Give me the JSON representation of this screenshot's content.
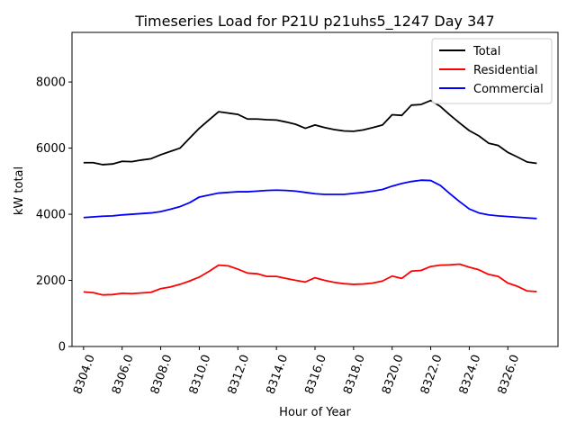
{
  "chart_data": {
    "type": "line",
    "title": "Timeseries Load for P21U p21uhs5_1247  Day 347",
    "xlabel": "Hour of Year",
    "ylabel": "kW total",
    "xlim": [
      8303.4,
      8328.6
    ],
    "ylim": [
      0,
      9500
    ],
    "xticks": [
      8304,
      8306,
      8308,
      8310,
      8312,
      8314,
      8316,
      8318,
      8320,
      8322,
      8324,
      8326
    ],
    "xtick_labels": [
      "8304.0",
      "8306.0",
      "8308.0",
      "8310.0",
      "8312.0",
      "8314.0",
      "8316.0",
      "8318.0",
      "8320.0",
      "8322.0",
      "8324.0",
      "8326.0"
    ],
    "yticks": [
      0,
      2000,
      4000,
      6000,
      8000
    ],
    "ytick_labels": [
      "0",
      "2000",
      "4000",
      "6000",
      "8000"
    ],
    "grid": false,
    "legend_position": "top-right",
    "series": [
      {
        "name": "Total",
        "color": "#000000",
        "points": [
          [
            8304,
            5560
          ],
          [
            8304.5,
            5560
          ],
          [
            8305,
            5500
          ],
          [
            8305.5,
            5520
          ],
          [
            8306,
            5600
          ],
          [
            8306.5,
            5590
          ],
          [
            8307,
            5640
          ],
          [
            8307.5,
            5680
          ],
          [
            8308,
            5800
          ],
          [
            8308.5,
            5900
          ],
          [
            8309,
            6000
          ],
          [
            8309.5,
            6300
          ],
          [
            8310,
            6600
          ],
          [
            8310.5,
            6850
          ],
          [
            8311,
            7100
          ],
          [
            8311.5,
            7060
          ],
          [
            8312,
            7020
          ],
          [
            8312.5,
            6880
          ],
          [
            8313,
            6880
          ],
          [
            8313.5,
            6860
          ],
          [
            8314,
            6850
          ],
          [
            8314.5,
            6790
          ],
          [
            8315,
            6720
          ],
          [
            8315.5,
            6600
          ],
          [
            8316,
            6700
          ],
          [
            8316.5,
            6620
          ],
          [
            8317,
            6560
          ],
          [
            8317.5,
            6520
          ],
          [
            8318,
            6510
          ],
          [
            8318.5,
            6550
          ],
          [
            8319,
            6620
          ],
          [
            8319.5,
            6700
          ],
          [
            8320,
            7010
          ],
          [
            8320.5,
            6990
          ],
          [
            8321,
            7300
          ],
          [
            8321.5,
            7320
          ],
          [
            8322,
            7440
          ],
          [
            8322.5,
            7260
          ],
          [
            8323,
            7000
          ],
          [
            8323.5,
            6760
          ],
          [
            8324,
            6530
          ],
          [
            8324.5,
            6370
          ],
          [
            8325,
            6150
          ],
          [
            8325.5,
            6080
          ],
          [
            8326,
            5870
          ],
          [
            8326.5,
            5730
          ],
          [
            8327,
            5580
          ],
          [
            8327.5,
            5540
          ]
        ]
      },
      {
        "name": "Residential",
        "color": "#ff0000",
        "points": [
          [
            8304,
            1650
          ],
          [
            8304.5,
            1630
          ],
          [
            8305,
            1560
          ],
          [
            8305.5,
            1570
          ],
          [
            8306,
            1610
          ],
          [
            8306.5,
            1600
          ],
          [
            8307,
            1620
          ],
          [
            8307.5,
            1640
          ],
          [
            8308,
            1750
          ],
          [
            8308.5,
            1800
          ],
          [
            8309,
            1880
          ],
          [
            8309.5,
            1980
          ],
          [
            8310,
            2100
          ],
          [
            8310.5,
            2270
          ],
          [
            8311,
            2460
          ],
          [
            8311.5,
            2440
          ],
          [
            8312,
            2340
          ],
          [
            8312.5,
            2220
          ],
          [
            8313,
            2200
          ],
          [
            8313.5,
            2120
          ],
          [
            8314,
            2120
          ],
          [
            8314.5,
            2060
          ],
          [
            8315,
            2000
          ],
          [
            8315.5,
            1950
          ],
          [
            8316,
            2080
          ],
          [
            8316.5,
            2000
          ],
          [
            8317,
            1940
          ],
          [
            8317.5,
            1900
          ],
          [
            8318,
            1880
          ],
          [
            8318.5,
            1890
          ],
          [
            8319,
            1920
          ],
          [
            8319.5,
            1980
          ],
          [
            8320,
            2130
          ],
          [
            8320.5,
            2060
          ],
          [
            8321,
            2280
          ],
          [
            8321.5,
            2300
          ],
          [
            8322,
            2420
          ],
          [
            8322.5,
            2460
          ],
          [
            8323,
            2470
          ],
          [
            8323.5,
            2490
          ],
          [
            8324,
            2400
          ],
          [
            8324.5,
            2320
          ],
          [
            8325,
            2180
          ],
          [
            8325.5,
            2120
          ],
          [
            8326,
            1920
          ],
          [
            8326.5,
            1820
          ],
          [
            8327,
            1680
          ],
          [
            8327.5,
            1660
          ]
        ]
      },
      {
        "name": "Commercial",
        "color": "#0000ff",
        "points": [
          [
            8304,
            3900
          ],
          [
            8304.5,
            3920
          ],
          [
            8305,
            3940
          ],
          [
            8305.5,
            3950
          ],
          [
            8306,
            3980
          ],
          [
            8306.5,
            4000
          ],
          [
            8307,
            4020
          ],
          [
            8307.5,
            4040
          ],
          [
            8308,
            4080
          ],
          [
            8308.5,
            4150
          ],
          [
            8309,
            4230
          ],
          [
            8309.5,
            4350
          ],
          [
            8310,
            4520
          ],
          [
            8310.5,
            4580
          ],
          [
            8311,
            4640
          ],
          [
            8311.5,
            4660
          ],
          [
            8312,
            4680
          ],
          [
            8312.5,
            4680
          ],
          [
            8313,
            4700
          ],
          [
            8313.5,
            4720
          ],
          [
            8314,
            4730
          ],
          [
            8314.5,
            4720
          ],
          [
            8315,
            4700
          ],
          [
            8315.5,
            4660
          ],
          [
            8316,
            4620
          ],
          [
            8316.5,
            4600
          ],
          [
            8317,
            4600
          ],
          [
            8317.5,
            4600
          ],
          [
            8318,
            4630
          ],
          [
            8318.5,
            4660
          ],
          [
            8319,
            4700
          ],
          [
            8319.5,
            4750
          ],
          [
            8320,
            4850
          ],
          [
            8320.5,
            4930
          ],
          [
            8321,
            4990
          ],
          [
            8321.5,
            5030
          ],
          [
            8322,
            5020
          ],
          [
            8322.5,
            4870
          ],
          [
            8323,
            4620
          ],
          [
            8323.5,
            4380
          ],
          [
            8324,
            4160
          ],
          [
            8324.5,
            4040
          ],
          [
            8325,
            3980
          ],
          [
            8325.5,
            3950
          ],
          [
            8326,
            3930
          ],
          [
            8326.5,
            3910
          ],
          [
            8327,
            3890
          ],
          [
            8327.5,
            3870
          ]
        ]
      }
    ]
  }
}
